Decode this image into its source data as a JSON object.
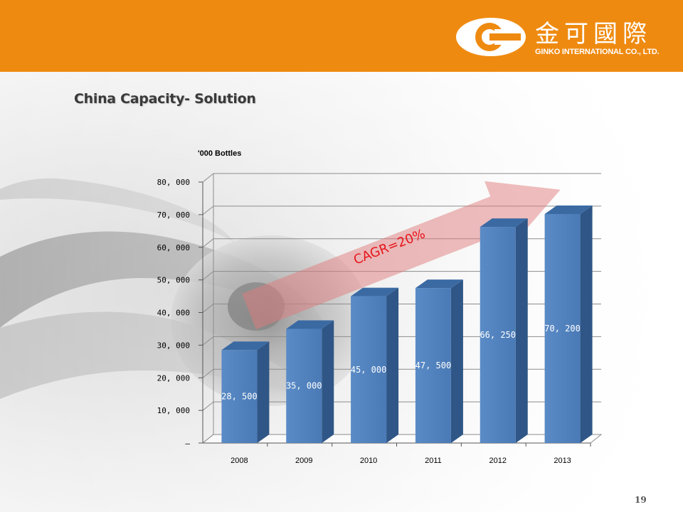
{
  "header": {
    "logo_cjk": "金可國際",
    "logo_en": "GINKO INTERNATIONAL CO., LTD.",
    "bg_color": "#ef8a10"
  },
  "slide": {
    "title": "China Capacity- Solution",
    "page_number": "19"
  },
  "chart_data": {
    "type": "bar",
    "unit_label": "'000 Bottles",
    "categories": [
      "2008",
      "2009",
      "2010",
      "2011",
      "2012",
      "2013"
    ],
    "values": [
      28500,
      35000,
      45000,
      47500,
      66250,
      70200
    ],
    "data_labels": [
      "28, 500",
      "35, 000",
      "45, 000",
      "47, 500",
      "66, 250",
      "70, 200"
    ],
    "y_ticks": [
      0,
      10000,
      20000,
      30000,
      40000,
      50000,
      60000,
      70000,
      80000
    ],
    "y_tick_labels": [
      "–",
      "10, 000",
      "20, 000",
      "30, 000",
      "40, 000",
      "50, 000",
      "60, 000",
      "70, 000",
      "80, 000"
    ],
    "ylim": [
      0,
      80000
    ],
    "grid": true,
    "bar_style": "3d",
    "bar_color": "#4f81bd",
    "annotation": {
      "text": "CAGR=20%",
      "arrow_color": "#e07b7b"
    }
  }
}
